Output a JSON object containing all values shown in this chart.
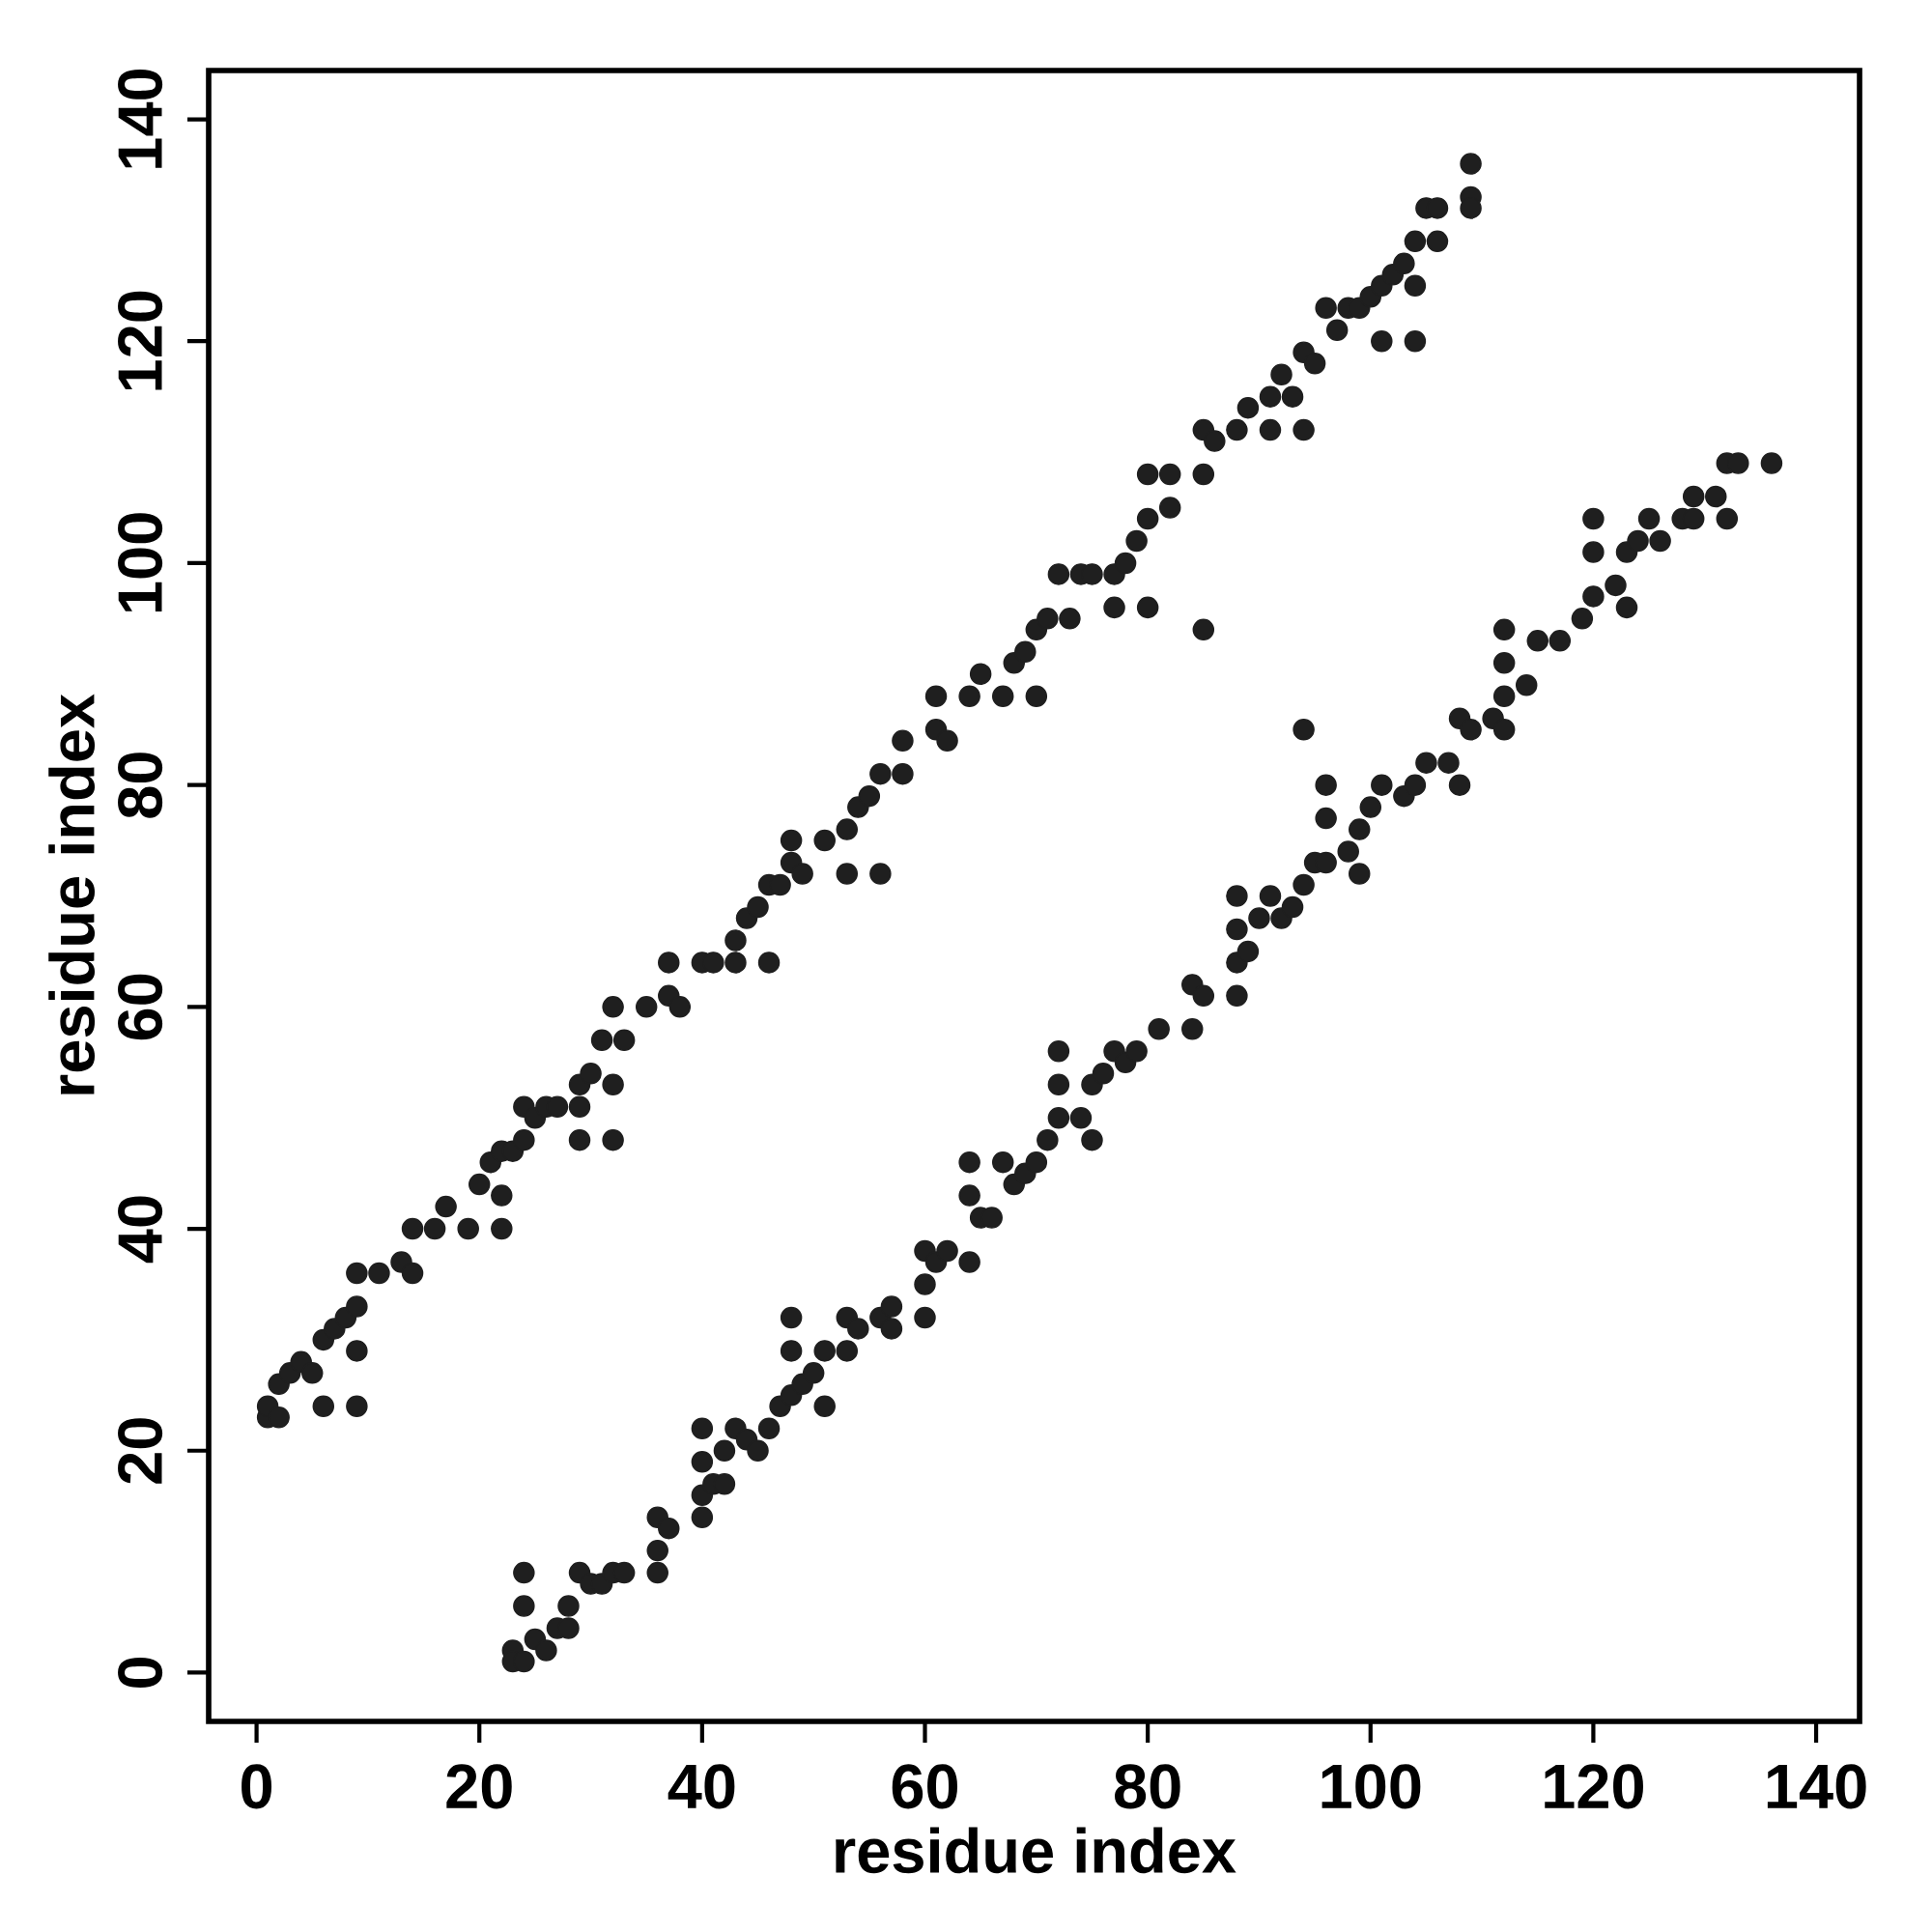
{
  "chart_data": {
    "type": "scatter",
    "xlabel": "residue index",
    "ylabel": "residue index",
    "xlim": [
      -4.3,
      143.9
    ],
    "ylim": [
      -4.4,
      144.4
    ],
    "xticks": [
      0,
      20,
      40,
      60,
      80,
      100,
      120,
      140
    ],
    "yticks": [
      0,
      20,
      40,
      60,
      80,
      100,
      120,
      140
    ],
    "grid": false,
    "series": [
      {
        "color": "#1f1f1f",
        "x": [
          1,
          1,
          2,
          2,
          3,
          4,
          5,
          6,
          7,
          8,
          9,
          9,
          9,
          6,
          9,
          11,
          13,
          14,
          14,
          16,
          17,
          19,
          20,
          21,
          22,
          22,
          22,
          23,
          24,
          24,
          25,
          26,
          27,
          29,
          29,
          29,
          30,
          31,
          32,
          32,
          32,
          33,
          35,
          37,
          37,
          38,
          40,
          41,
          43,
          43,
          44,
          45,
          46,
          46,
          47,
          48,
          49,
          48,
          51,
          53,
          53,
          54,
          55,
          56,
          56,
          58,
          58,
          61,
          61,
          62,
          64,
          65,
          67,
          68,
          69,
          70,
          70,
          71,
          72,
          73,
          74,
          75,
          77,
          77,
          78,
          79,
          80,
          80,
          80,
          82,
          82,
          85,
          85,
          86,
          85,
          88,
          89,
          91,
          91,
          92,
          93,
          94,
          94,
          95,
          96,
          97,
          98,
          99,
          100,
          101,
          101,
          102,
          103,
          104,
          104,
          104,
          105,
          106,
          106,
          109,
          109,
          109
        ],
        "values": [
          23,
          24,
          23,
          26,
          27,
          28,
          27,
          30,
          31,
          32,
          33,
          36,
          29,
          24,
          24,
          36,
          37,
          40,
          36,
          40,
          42,
          40,
          44,
          46,
          40,
          43,
          47,
          47,
          48,
          51,
          50,
          51,
          51,
          51,
          48,
          53,
          54,
          57,
          53,
          60,
          48,
          57,
          60,
          61,
          64,
          60,
          64,
          64,
          64,
          66,
          68,
          69,
          64,
          71,
          71,
          73,
          72,
          75,
          75,
          72,
          76,
          78,
          79,
          72,
          81,
          81,
          84,
          85,
          88,
          84,
          88,
          90,
          88,
          91,
          92,
          88,
          94,
          95,
          99,
          95,
          99,
          99,
          99,
          96,
          100,
          102,
          96,
          108,
          104,
          108,
          105,
          94,
          112,
          111,
          108,
          112,
          114,
          112,
          115,
          117,
          115,
          112,
          119,
          118,
          123,
          121,
          123,
          123,
          124,
          120,
          125,
          126,
          127,
          120,
          129,
          125,
          132,
          129,
          132,
          136,
          133,
          132
        ]
      },
      {
        "color": "#1f1f1f",
        "x": [
          23,
          23,
          24,
          24,
          24,
          25,
          26,
          27,
          28,
          28,
          29,
          30,
          31,
          32,
          33,
          36,
          36,
          36,
          37,
          40,
          40,
          40,
          40,
          41,
          42,
          42,
          43,
          44,
          45,
          46,
          47,
          48,
          48,
          48,
          49,
          50,
          51,
          51,
          53,
          53,
          54,
          56,
          57,
          57,
          60,
          60,
          60,
          61,
          62,
          64,
          64,
          64,
          65,
          66,
          67,
          68,
          69,
          70,
          71,
          72,
          72,
          72,
          74,
          75,
          75,
          76,
          77,
          78,
          79,
          81,
          84,
          84,
          85,
          88,
          88,
          88,
          88,
          89,
          90,
          91,
          92,
          93,
          94,
          94,
          95,
          96,
          96,
          96,
          98,
          99,
          99,
          100,
          101,
          103,
          104,
          105,
          107,
          108,
          108,
          109,
          111,
          112,
          112,
          112,
          112,
          114,
          115,
          117,
          119,
          120,
          120,
          120,
          122,
          123,
          123,
          124,
          125,
          126,
          128,
          129,
          129,
          131,
          132,
          132,
          133,
          136
        ],
        "values": [
          2,
          1,
          9,
          6,
          1,
          3,
          2,
          4,
          6,
          4,
          9,
          8,
          8,
          9,
          9,
          9,
          11,
          14,
          13,
          14,
          19,
          22,
          16,
          17,
          17,
          20,
          22,
          21,
          20,
          22,
          24,
          25,
          32,
          29,
          26,
          27,
          29,
          24,
          29,
          32,
          31,
          32,
          33,
          31,
          32,
          35,
          38,
          37,
          38,
          37,
          43,
          46,
          41,
          41,
          46,
          44,
          45,
          46,
          48,
          50,
          53,
          56,
          50,
          48,
          53,
          54,
          56,
          55,
          56,
          58,
          58,
          62,
          61,
          61,
          64,
          70,
          67,
          65,
          68,
          70,
          68,
          69,
          85,
          71,
          73,
          73,
          77,
          80,
          74,
          72,
          76,
          78,
          80,
          79,
          80,
          82,
          82,
          80,
          86,
          85,
          86,
          85,
          88,
          91,
          94,
          89,
          93,
          93,
          95,
          97,
          101,
          104,
          98,
          96,
          101,
          102,
          104,
          102,
          104,
          106,
          104,
          106,
          109,
          104,
          109,
          109
        ]
      }
    ]
  }
}
